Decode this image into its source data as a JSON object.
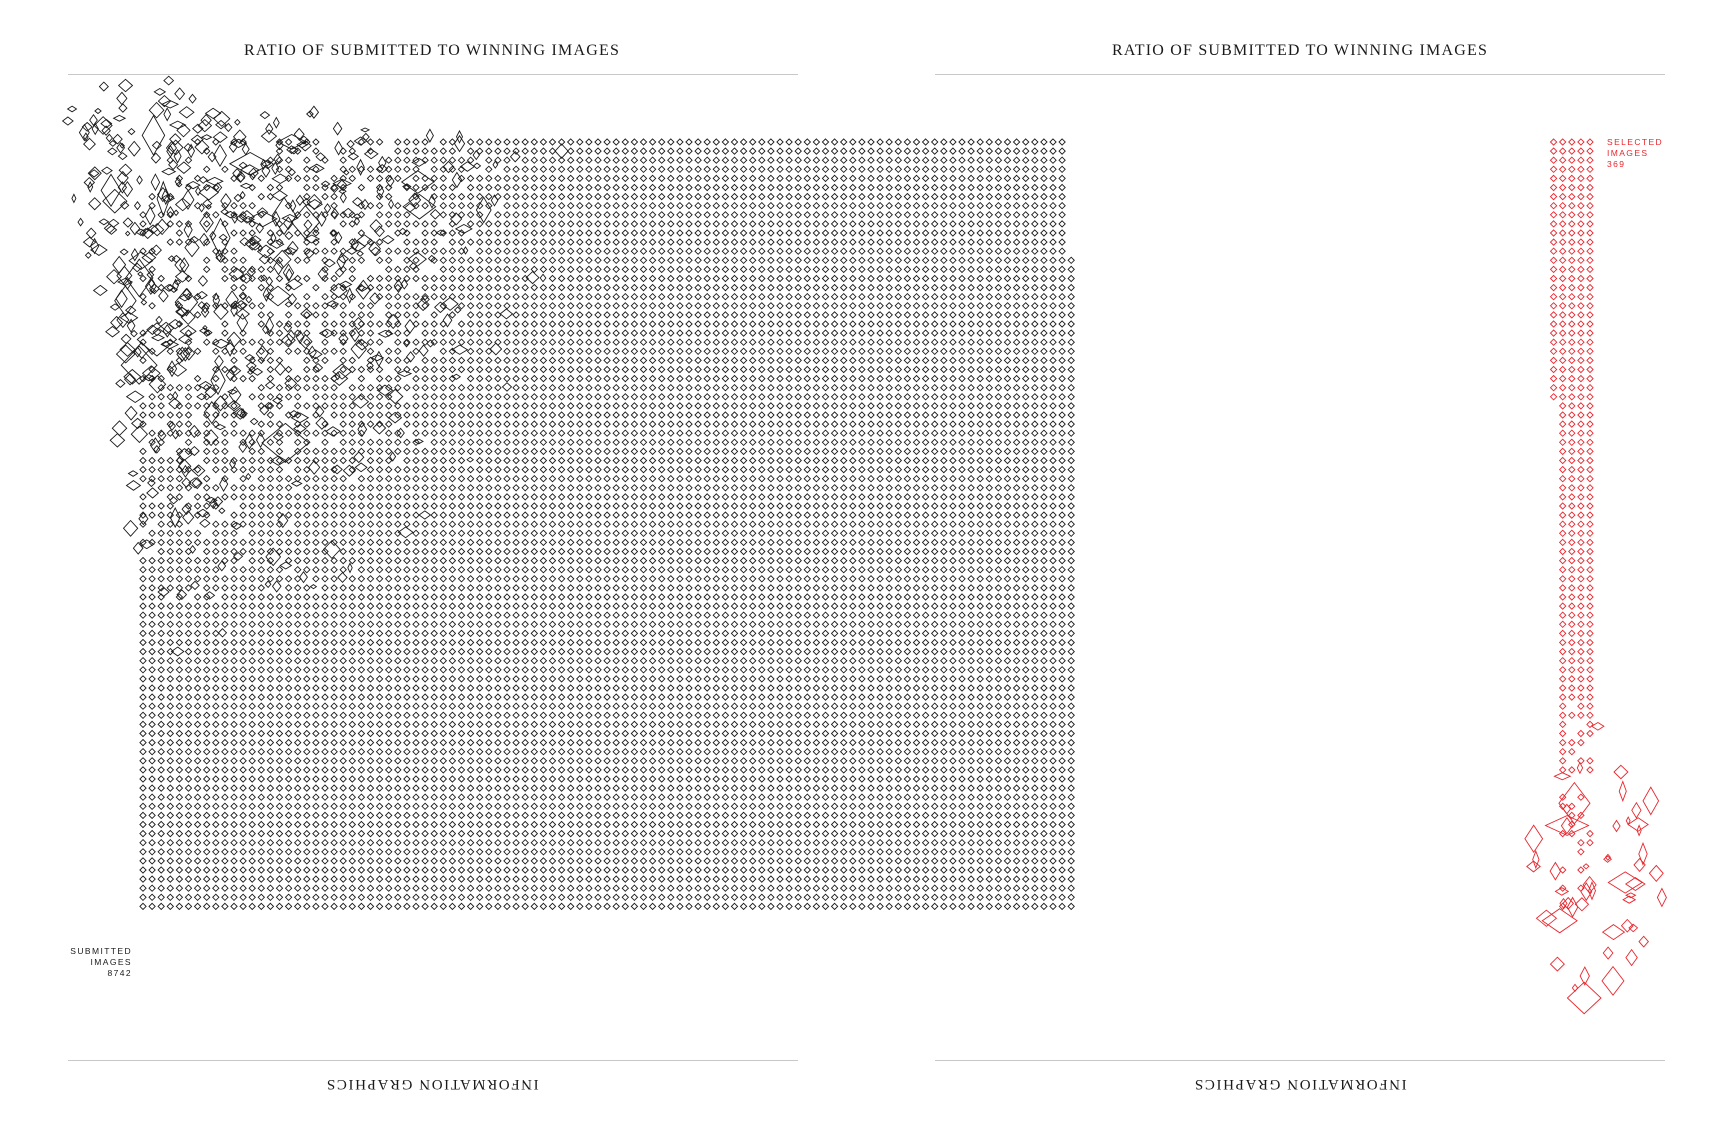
{
  "titles": {
    "left": "RATIO OF SUBMITTED TO WINNING IMAGES",
    "right": "RATIO OF SUBMITTED TO WINNING IMAGES"
  },
  "footers": {
    "left": "INFORMATION GRAPHICS",
    "right": "INFORMATION GRAPHICS"
  },
  "colors": {
    "submitted": "#1a1a1a",
    "selected": "#e8262d",
    "rule": "#c8c8c8"
  },
  "chart_data": {
    "type": "unit-grid",
    "series": [
      {
        "name": "SUBMITTED IMAGES",
        "count": 8742,
        "color": "#1a1a1a"
      },
      {
        "name": "SELECTED IMAGES",
        "count": 369,
        "color": "#e8262d"
      }
    ],
    "labels": {
      "submitted": [
        "SUBMITTED",
        "IMAGES",
        "8742"
      ],
      "selected": [
        "SELECTED",
        "IMAGES",
        "369"
      ]
    }
  }
}
